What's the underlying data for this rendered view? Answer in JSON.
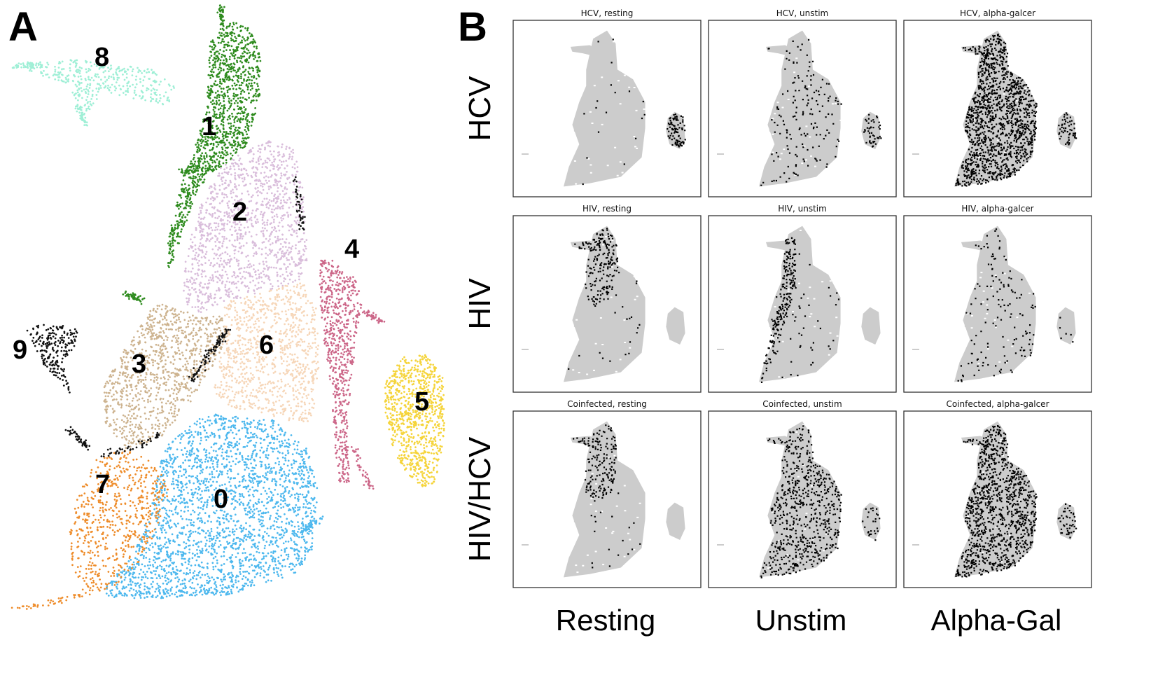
{
  "panel_letters": [
    "A",
    "B"
  ],
  "chart_data": [
    {
      "type": "scatter",
      "panel": "A",
      "title": "",
      "xlabel": "",
      "ylabel": "",
      "grid": false,
      "clusters": [
        {
          "label": "0",
          "color": "#4db8ee"
        },
        {
          "label": "1",
          "color": "#2e8b1e"
        },
        {
          "label": "2",
          "color": "#d9bddb"
        },
        {
          "label": "3",
          "color": "#cdb38f"
        },
        {
          "label": "4",
          "color": "#cc6688"
        },
        {
          "label": "5",
          "color": "#f5d43a"
        },
        {
          "label": "6",
          "color": "#f6d6b8"
        },
        {
          "label": "7",
          "color": "#ee8c2a"
        },
        {
          "label": "8",
          "color": "#9fefd6"
        },
        {
          "label": "9",
          "color": "#111111"
        }
      ]
    },
    {
      "type": "scatter",
      "panel": "B",
      "grid": false,
      "background_color": "#cccccc",
      "highlight_color": "#000000",
      "row_labels": [
        "HCV",
        "HIV",
        "HIV/HCV"
      ],
      "column_labels": [
        "Resting",
        "Unstim",
        "Alpha-Gal"
      ],
      "subplots": [
        {
          "title": "HCV, resting",
          "row": 0,
          "col": 0
        },
        {
          "title": "HCV, unstim",
          "row": 0,
          "col": 1
        },
        {
          "title": "HCV, alpha-galcer",
          "row": 0,
          "col": 2
        },
        {
          "title": "HIV, resting",
          "row": 1,
          "col": 0
        },
        {
          "title": "HIV, unstim",
          "row": 1,
          "col": 1
        },
        {
          "title": "HIV, alpha-galcer",
          "row": 1,
          "col": 2
        },
        {
          "title": "Coinfected, resting",
          "row": 2,
          "col": 0
        },
        {
          "title": "Coinfected, unstim",
          "row": 2,
          "col": 1
        },
        {
          "title": "Coinfected, alpha-galcer",
          "row": 2,
          "col": 2
        }
      ]
    }
  ]
}
